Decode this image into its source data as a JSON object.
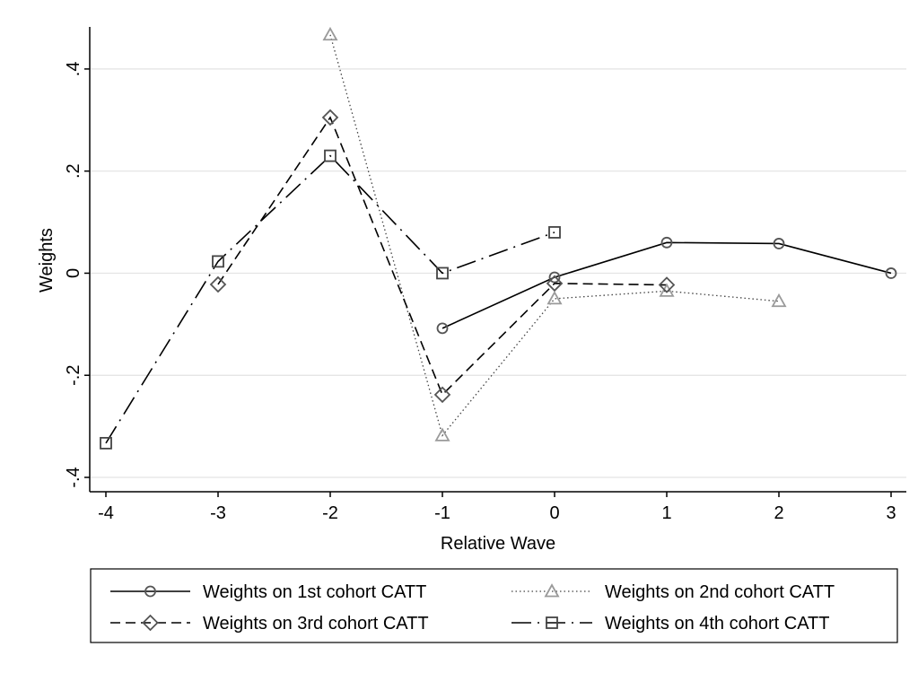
{
  "chart_data": {
    "type": "line",
    "title": "",
    "xlabel": "Relative Wave",
    "ylabel": "Weights",
    "xlim": [
      -4,
      3
    ],
    "ylim": [
      -0.4,
      0.5
    ],
    "xticks": [
      -4,
      -3,
      -2,
      -1,
      0,
      1,
      2,
      3
    ],
    "xtick_labels": [
      "-4",
      "-3",
      "-2",
      "-1",
      "0",
      "1",
      "2",
      "3"
    ],
    "yticks": [
      -0.4,
      -0.2,
      0,
      0.2,
      0.4
    ],
    "ytick_labels": [
      "-.4",
      "-.2",
      "0",
      ".2",
      ".4"
    ],
    "grid": true,
    "legend_position": "bottom",
    "series": [
      {
        "name": "Weights on 1st cohort CATT",
        "marker": "circle",
        "line_style": "solid",
        "color": "#000000",
        "marker_color": "#555555",
        "x": [
          -1,
          0,
          1,
          2,
          3
        ],
        "y": [
          -0.108,
          -0.008,
          0.06,
          0.058,
          0.0
        ]
      },
      {
        "name": "Weights on 2nd cohort CATT",
        "marker": "triangle",
        "line_style": "dotted",
        "color": "#444444",
        "marker_color": "#9a9a9a",
        "x": [
          -2,
          -1,
          0,
          1,
          2
        ],
        "y": [
          0.467,
          -0.318,
          -0.05,
          -0.035,
          -0.055
        ]
      },
      {
        "name": "Weights on 3rd cohort CATT",
        "marker": "diamond",
        "line_style": "dashed",
        "color": "#000000",
        "marker_color": "#555555",
        "x": [
          -3,
          -2,
          -1,
          0,
          1
        ],
        "y": [
          -0.022,
          0.305,
          -0.238,
          -0.02,
          -0.023
        ]
      },
      {
        "name": "Weights on 4th cohort CATT",
        "marker": "square",
        "line_style": "longdash",
        "color": "#000000",
        "marker_color": "#444444",
        "x": [
          -4,
          -3,
          -2,
          -1,
          0
        ],
        "y": [
          -0.333,
          0.023,
          0.23,
          0.0,
          0.08
        ]
      }
    ]
  },
  "legend": {
    "items": [
      "Weights on 1st cohort CATT",
      "Weights on 2nd cohort CATT",
      "Weights on 3rd cohort CATT",
      "Weights on 4th cohort CATT"
    ]
  }
}
